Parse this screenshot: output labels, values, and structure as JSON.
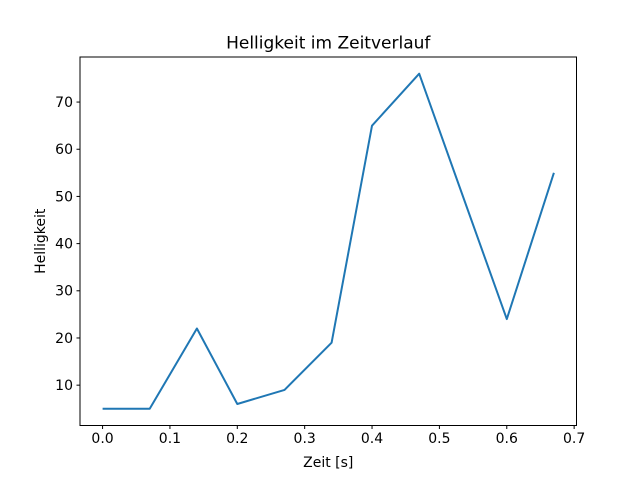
{
  "figure": {
    "background": "#ffffff"
  },
  "chart_data": {
    "type": "line",
    "title": "Helligkeit im Zeitverlauf",
    "xlabel": "Zeit [s]",
    "ylabel": "Helligkeit",
    "x": [
      0.0,
      0.07,
      0.14,
      0.2,
      0.27,
      0.34,
      0.4,
      0.47,
      0.53,
      0.6,
      0.67
    ],
    "y": [
      5,
      5,
      22,
      6,
      9,
      19,
      65,
      76,
      52,
      24,
      55
    ],
    "xlim": [
      -0.0335,
      0.7035
    ],
    "ylim": [
      1.45,
      79.55
    ],
    "xticks": [
      0.0,
      0.1,
      0.2,
      0.3,
      0.4,
      0.5,
      0.6,
      0.7
    ],
    "xtick_labels": [
      "0.0",
      "0.1",
      "0.2",
      "0.3",
      "0.4",
      "0.5",
      "0.6",
      "0.7"
    ],
    "yticks": [
      10,
      20,
      30,
      40,
      50,
      60,
      70
    ],
    "ytick_labels": [
      "10",
      "20",
      "30",
      "40",
      "50",
      "60",
      "70"
    ],
    "line_color": "#1f77b4",
    "axis_color": "#000000",
    "grid": false,
    "legend": null
  }
}
